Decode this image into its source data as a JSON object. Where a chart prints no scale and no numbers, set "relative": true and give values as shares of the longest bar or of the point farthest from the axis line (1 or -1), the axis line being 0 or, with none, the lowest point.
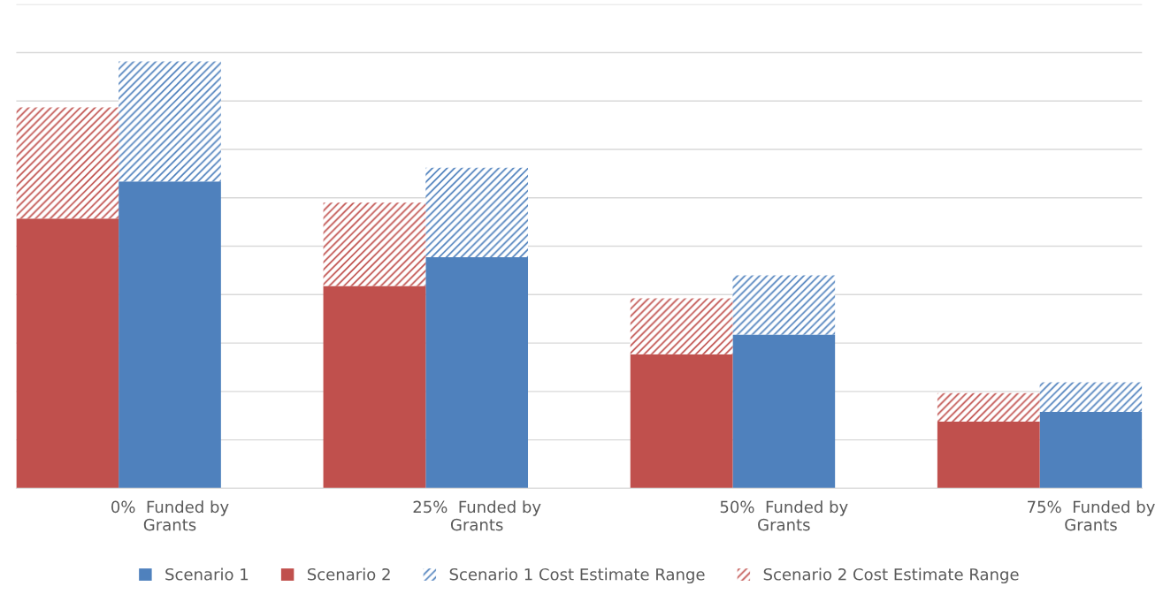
{
  "chart_data": {
    "type": "bar",
    "stacked": true,
    "relative": true,
    "grid": "y",
    "legend": "bottom",
    "categories": [
      null,
      "0%  Funded by\nGrants",
      null,
      null,
      "25%  Funded by\nGrants",
      null,
      null,
      "50%  Funded by\nGrants",
      null,
      null,
      "75%  Funded by\nGrants"
    ],
    "series": [
      {
        "name": "Scenario 1",
        "color": "#4f81bd",
        "values": [
          null,
          0.719,
          null,
          null,
          0.541,
          null,
          null,
          0.36,
          null,
          null,
          0.179
        ]
      },
      {
        "name": "Scenario 2",
        "color": "#c0504d",
        "values": [
          0.632,
          null,
          null,
          0.474,
          null,
          null,
          0.314,
          null,
          null,
          0.156,
          null
        ]
      },
      {
        "name": "Scenario 1 Cost Estimate Range",
        "color": "#4f81bd",
        "values": [
          null,
          0.281,
          null,
          null,
          0.21,
          null,
          null,
          0.139,
          null,
          null,
          0.069
        ]
      },
      {
        "name": "Scenario 2 Cost Estimate Range",
        "color": "#c0504d",
        "values": [
          0.26,
          null,
          null,
          0.195,
          null,
          null,
          0.131,
          null,
          null,
          0.067,
          null
        ]
      }
    ]
  }
}
